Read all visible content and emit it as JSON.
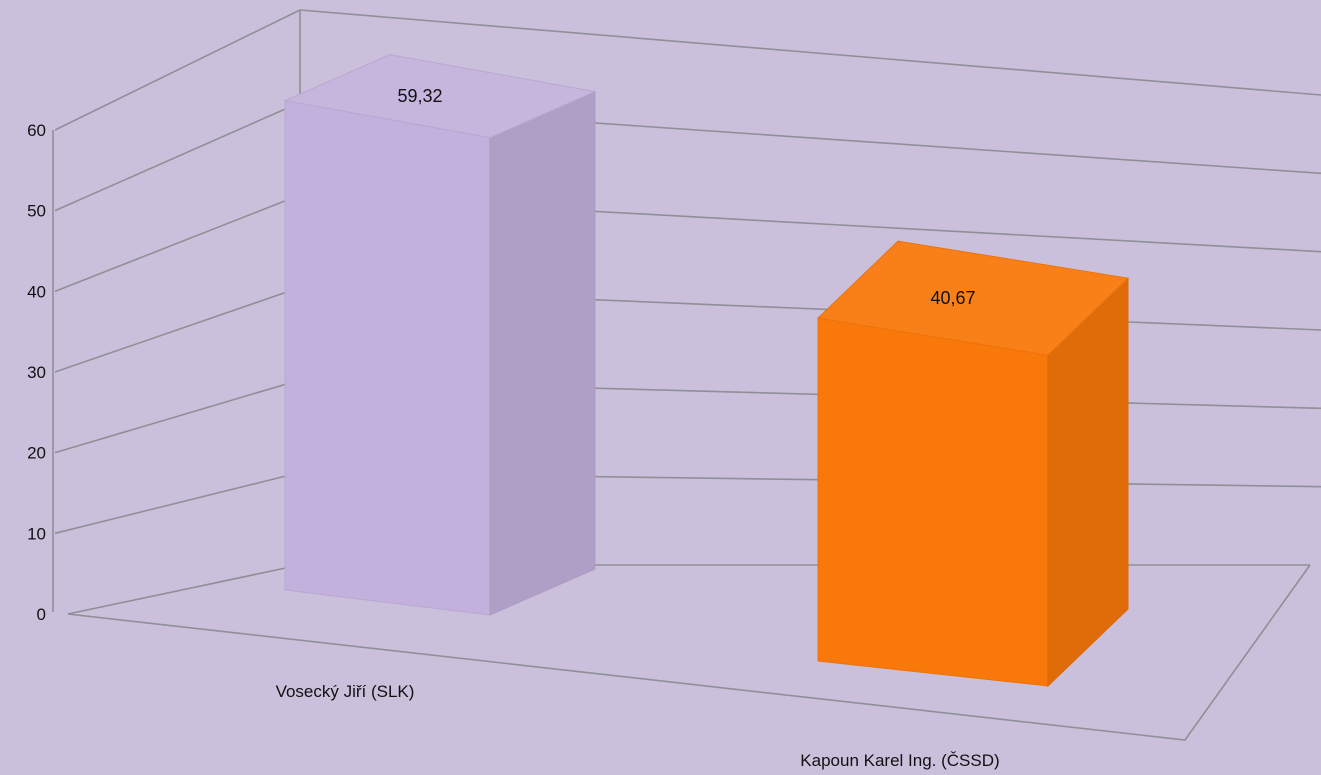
{
  "chart_data": {
    "type": "bar",
    "style": "3d",
    "categories": [
      "Vosecký Jiří (SLK)",
      "Kapoun Karel Ing. (ČSSD)"
    ],
    "values": [
      59.32,
      40.67
    ],
    "data_labels": [
      "59,32",
      "40,67"
    ],
    "colors": [
      "#c2b1dc",
      "#f9780a"
    ],
    "ylim": [
      0,
      60
    ],
    "yticks": [
      0,
      10,
      20,
      30,
      40,
      50,
      60
    ],
    "grid": true,
    "legend": "none",
    "title": "",
    "xlabel": "",
    "ylabel": ""
  }
}
